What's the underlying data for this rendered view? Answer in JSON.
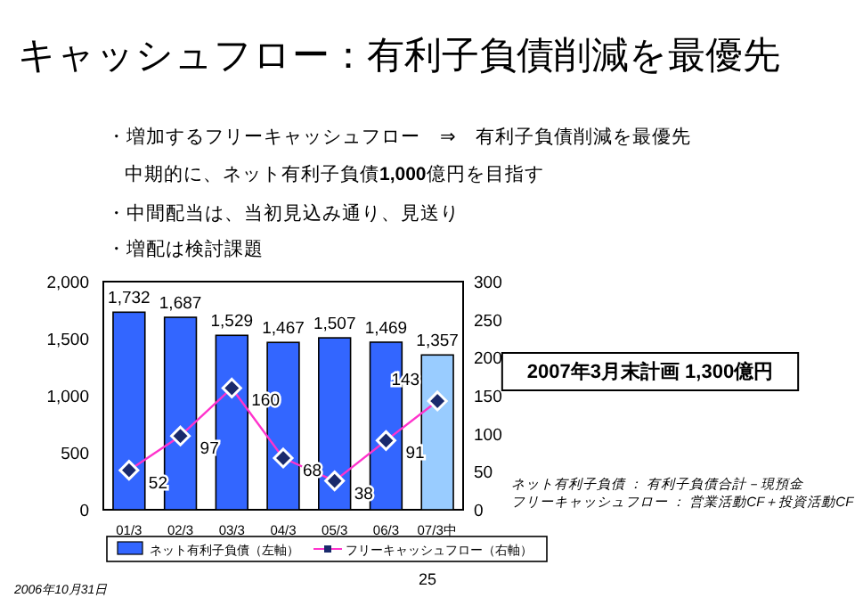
{
  "chart_data": {
    "type": "bar",
    "title": "キャッシュフロー：有利子負債削減を最優先",
    "categories": [
      "01/3",
      "02/3",
      "03/3",
      "04/3",
      "05/3",
      "06/3",
      "07/3中"
    ],
    "series": [
      {
        "name": "ネット有利子負債（左軸）",
        "color": "#3366ff",
        "colors": [
          "#3366ff",
          "#3366ff",
          "#3366ff",
          "#3366ff",
          "#3366ff",
          "#3366ff",
          "#99ccff"
        ],
        "values": [
          1732,
          1687,
          1529,
          1467,
          1507,
          1469,
          1357
        ],
        "value_labels": [
          "1,732",
          "1,687",
          "1,529",
          "1,467",
          "1,507",
          "1,469",
          "1,357"
        ]
      },
      {
        "name": "フリーキャッシュフロー（右軸）",
        "type": "line",
        "axis": "y2",
        "color": "#ff33cc",
        "values": [
          52,
          97,
          160,
          68,
          38,
          91,
          143
        ]
      }
    ],
    "ylim": [
      0,
      2000
    ],
    "yticks": [
      {
        "value": 0,
        "label": "0"
      },
      {
        "value": 500,
        "label": "500"
      },
      {
        "value": 1000,
        "label": "1,000"
      },
      {
        "value": 1500,
        "label": "1,500"
      },
      {
        "value": 2000,
        "label": "2,000"
      }
    ],
    "y2lim": [
      0,
      300
    ],
    "y2ticks": [
      0,
      50,
      100,
      150,
      200,
      250,
      300
    ],
    "data_labels": true,
    "marker": "diamond",
    "legend": "bottom",
    "grid": false,
    "annotations": [
      "・増加するフリーキャッシュフロー　⇒　有利子負債削減を最優先",
      "中期的に、ネット有利子負債**1,000**億円を目指す",
      "・中間配当は、当初見込み通り、見送り",
      "・増配は検討課題",
      "2007年3月末計画 1,300億円",
      "ネット有利子負債 ： 有利子負債合計－現預金",
      "フリーキャッシュフロー ： 営業活動CF＋投資活動CF",
      "25",
      "2006年10月31日"
    ]
  }
}
